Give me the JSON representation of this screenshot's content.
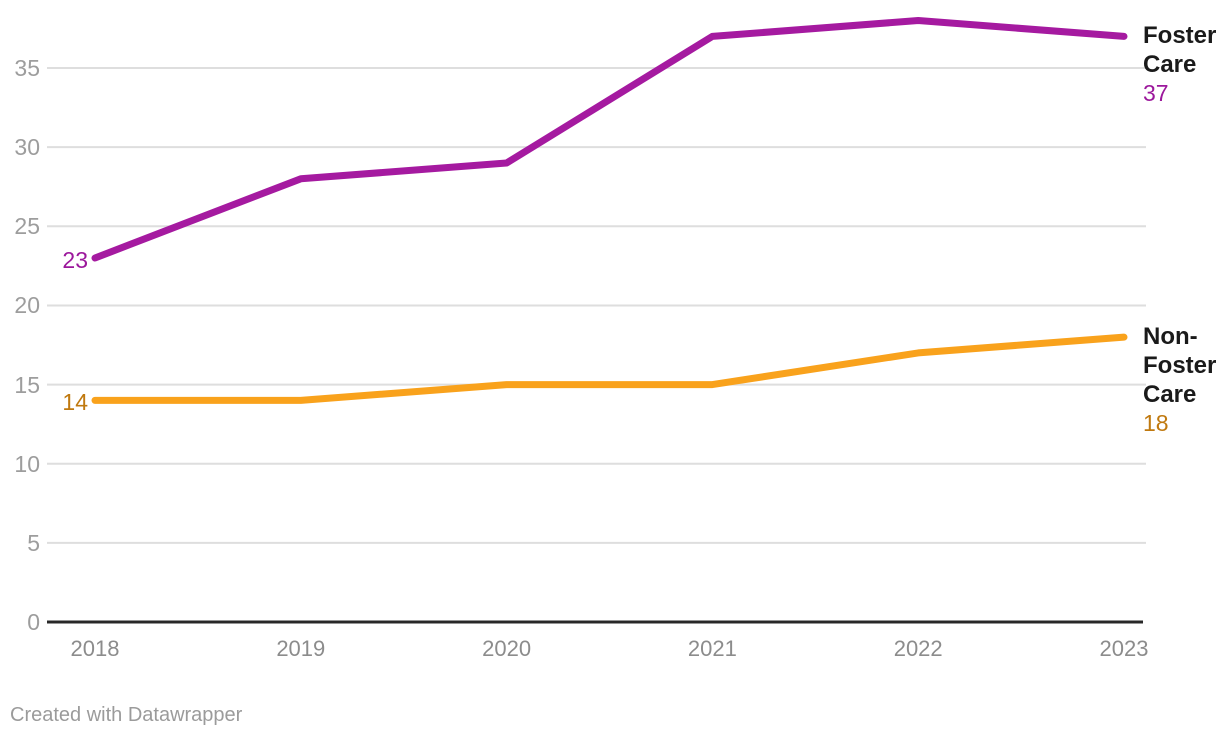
{
  "chart_data": {
    "type": "line",
    "title": "",
    "xlabel": "",
    "ylabel": "",
    "x": [
      "2018",
      "2019",
      "2020",
      "2021",
      "2022",
      "2023"
    ],
    "series": [
      {
        "name": "Foster Care",
        "values": [
          23,
          28,
          29,
          37,
          38,
          37
        ],
        "color": "#a51aa0",
        "value_label_color": "#9c189c"
      },
      {
        "name": "Non-Foster Care",
        "values": [
          14,
          14,
          15,
          15,
          17,
          18
        ],
        "color": "#f9a21c",
        "value_label_color": "#c0790f"
      }
    ],
    "ylim": [
      0,
      39
    ],
    "yticks": [
      0,
      5,
      10,
      15,
      20,
      25,
      30,
      35
    ],
    "grid": true,
    "legend": "direct labels at right end of each line with end values",
    "value_labels_shown": {
      "first_point": true,
      "last_point": true
    }
  },
  "colors": {
    "gridline": "#dedede",
    "axis_baseline": "#282828",
    "y_tick_label": "#9d9d9d",
    "x_tick_label": "#8c8c8c",
    "series_name_text": "#1a1a1a",
    "attribution_text": "#9b9b9b",
    "background": "#ffffff"
  },
  "footer": {
    "attribution": "Created with Datawrapper"
  }
}
